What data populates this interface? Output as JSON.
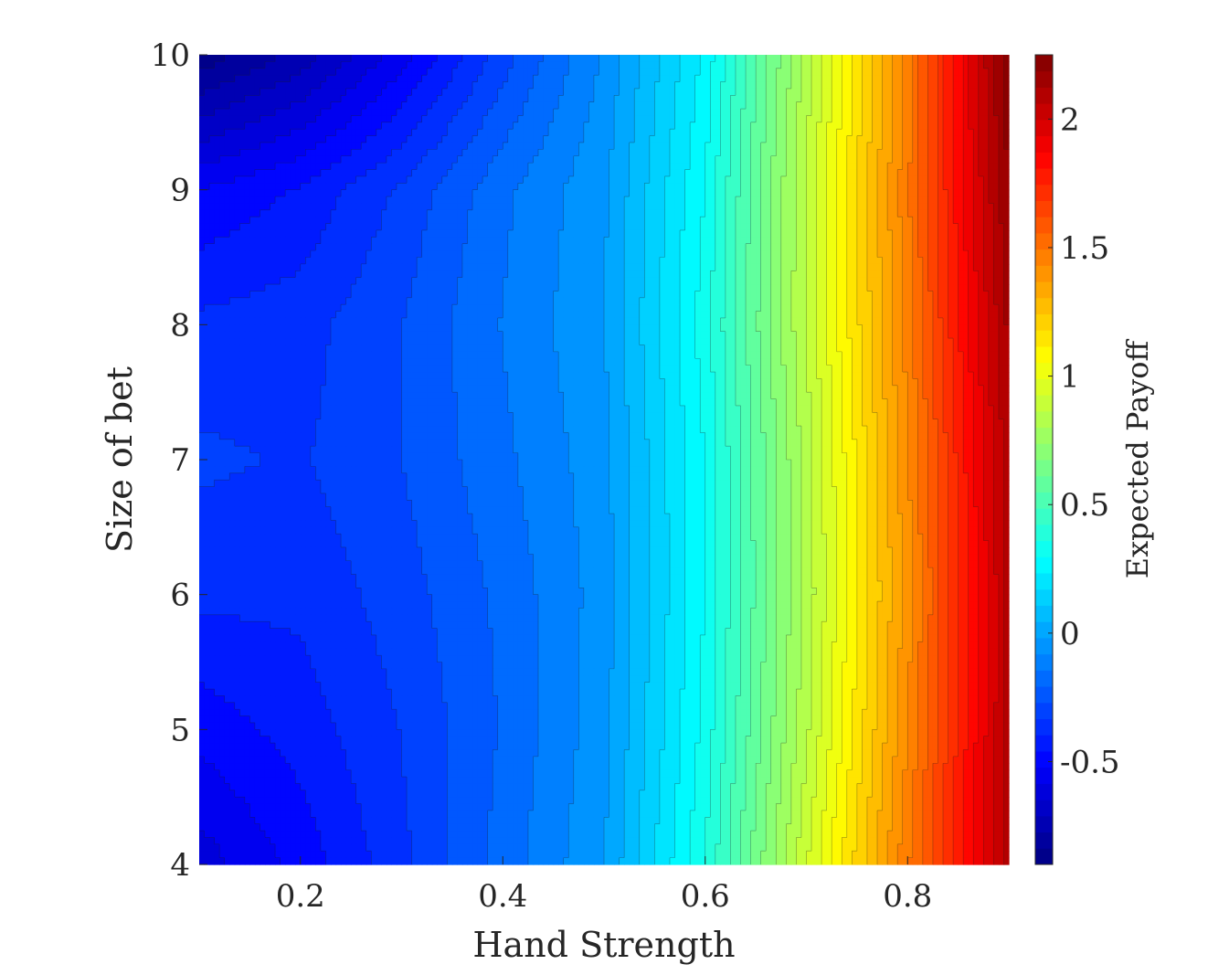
{
  "chart_data": {
    "type": "heatmap",
    "subtype": "filled-contour",
    "title": "",
    "xlabel": "Hand Strength",
    "ylabel": "Size of bet",
    "colorbar_label": "Expected Payoff",
    "xlim": [
      0.1,
      0.9
    ],
    "ylim": [
      4,
      10
    ],
    "clim": [
      -0.9,
      2.25
    ],
    "xticks": [
      0.2,
      0.4,
      0.6,
      0.8
    ],
    "xtick_labels": [
      "0.2",
      "0.4",
      "0.6",
      "0.8"
    ],
    "yticks": [
      4,
      5,
      6,
      7,
      8,
      9,
      10
    ],
    "ytick_labels": [
      "4",
      "5",
      "6",
      "7",
      "8",
      "9",
      "10"
    ],
    "cticks": [
      -0.5,
      0,
      0.5,
      1,
      1.5,
      2
    ],
    "ctick_labels": [
      "-0.5",
      "0",
      "0.5",
      "1",
      "1.5",
      "2"
    ],
    "colormap": "jet",
    "contour_levels": 50,
    "grid": false,
    "legend": "none",
    "x": [
      0.1,
      0.2,
      0.3,
      0.4,
      0.5,
      0.6,
      0.7,
      0.8,
      0.9
    ],
    "y": [
      4,
      5,
      6,
      7,
      8,
      9,
      10
    ],
    "z": [
      [
        -0.62,
        -0.5,
        -0.35,
        -0.18,
        -0.02,
        0.36,
        0.92,
        1.48,
        2.1
      ],
      [
        -0.5,
        -0.43,
        -0.33,
        -0.2,
        -0.04,
        0.32,
        0.85,
        1.43,
        2.08
      ],
      [
        -0.38,
        -0.38,
        -0.3,
        -0.19,
        -0.05,
        0.3,
        0.82,
        1.4,
        2.08
      ],
      [
        -0.32,
        -0.34,
        -0.27,
        -0.16,
        -0.04,
        0.3,
        0.83,
        1.42,
        2.1
      ],
      [
        -0.38,
        -0.36,
        -0.27,
        -0.14,
        -0.02,
        0.33,
        0.87,
        1.46,
        2.14
      ],
      [
        -0.52,
        -0.45,
        -0.32,
        -0.16,
        -0.03,
        0.3,
        0.87,
        1.48,
        2.19
      ],
      [
        -0.88,
        -0.75,
        -0.55,
        -0.3,
        -0.07,
        0.25,
        0.83,
        1.46,
        2.24
      ]
    ]
  }
}
